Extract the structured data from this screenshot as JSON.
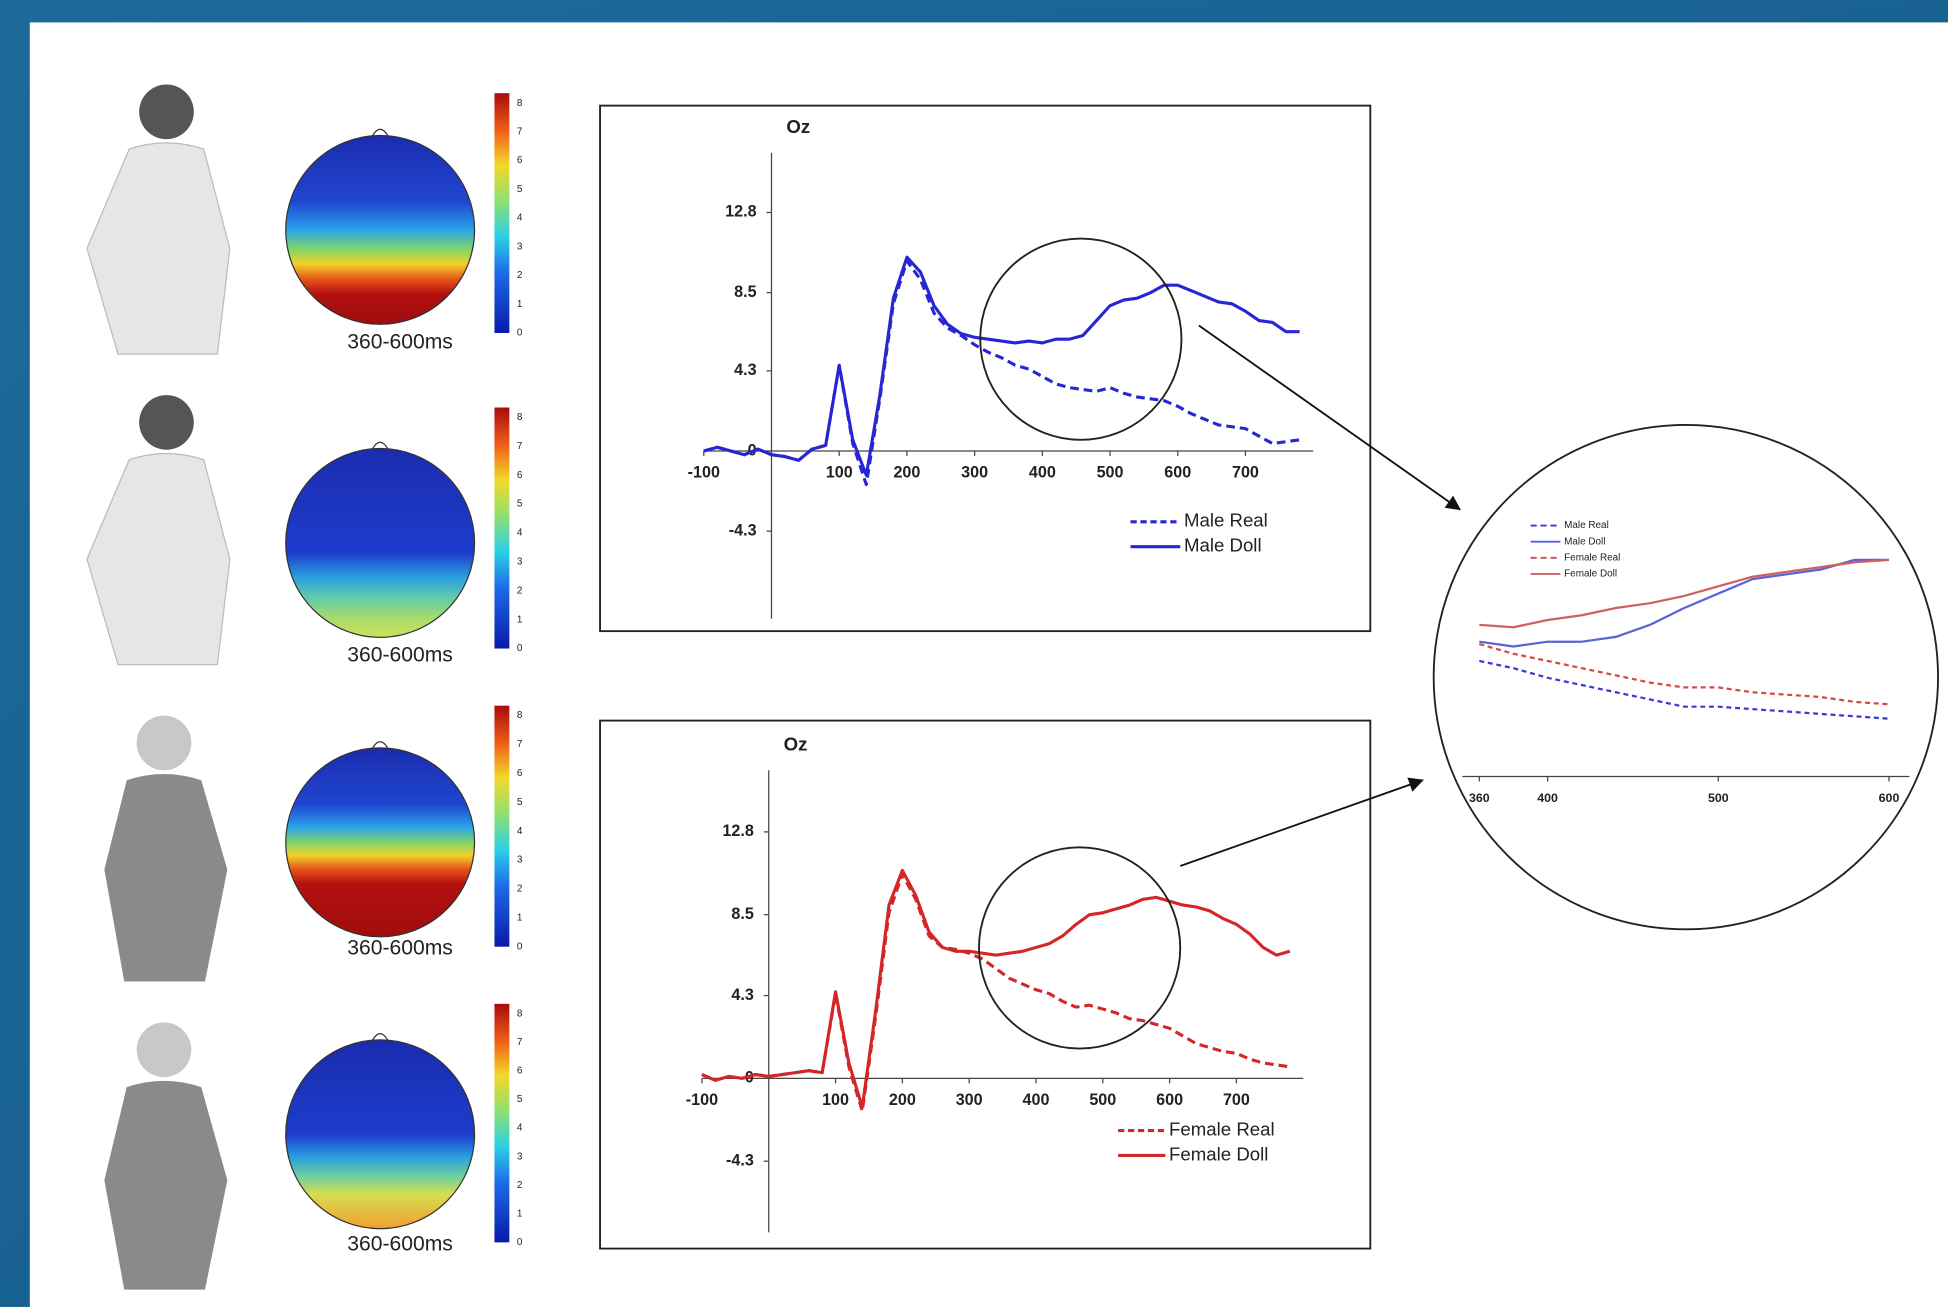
{
  "topomaps": [
    {
      "label": "360-600ms",
      "scale_ticks": [
        0,
        1,
        2,
        3,
        4,
        5,
        6,
        7,
        8
      ]
    },
    {
      "label": "360-600ms",
      "scale_ticks": [
        0,
        1,
        2,
        3,
        4,
        5,
        6,
        7,
        8
      ]
    },
    {
      "label": "360-600ms",
      "scale_ticks": [
        0,
        1,
        2,
        3,
        4,
        5,
        6,
        7,
        8
      ]
    },
    {
      "label": "360-600ms",
      "scale_ticks": [
        0,
        1,
        2,
        3,
        4,
        5,
        6,
        7,
        8
      ]
    }
  ],
  "chart_data": [
    {
      "type": "line",
      "title": "Oz",
      "x": [
        -100,
        -80,
        -60,
        -40,
        -20,
        0,
        20,
        40,
        60,
        80,
        100,
        120,
        140,
        160,
        180,
        200,
        220,
        240,
        260,
        280,
        300,
        320,
        340,
        360,
        380,
        400,
        420,
        440,
        460,
        480,
        500,
        520,
        540,
        560,
        580,
        600,
        620,
        640,
        660,
        680,
        700,
        720,
        740,
        760,
        780
      ],
      "xlim": [
        -100,
        800
      ],
      "xticks": [
        -100,
        100,
        200,
        300,
        400,
        500,
        600,
        700
      ],
      "ylim": [
        -9,
        16
      ],
      "yticks": [
        -4.3,
        0,
        4.3,
        8.5,
        12.8
      ],
      "series": [
        {
          "name": "Male Real",
          "color": "#2626d4",
          "dash": true,
          "values": [
            0,
            0.2,
            0,
            -0.2,
            0.1,
            -0.2,
            -0.3,
            -0.5,
            0.1,
            0.3,
            4.6,
            0.4,
            -1.8,
            2.8,
            7.9,
            10.2,
            9.2,
            7.4,
            6.6,
            6.2,
            5.7,
            5.3,
            5.0,
            4.6,
            4.4,
            4.0,
            3.6,
            3.4,
            3.3,
            3.2,
            3.4,
            3.1,
            2.9,
            2.8,
            2.7,
            2.4,
            2.0,
            1.7,
            1.4,
            1.3,
            1.2,
            0.8,
            0.4,
            0.5,
            0.6
          ]
        },
        {
          "name": "Male Doll",
          "color": "#2626d4",
          "dash": false,
          "values": [
            0,
            0.2,
            0,
            -0.2,
            0.1,
            -0.2,
            -0.3,
            -0.5,
            0.1,
            0.3,
            4.6,
            0.6,
            -1.3,
            3.0,
            8.2,
            10.4,
            9.6,
            7.8,
            6.8,
            6.3,
            6.1,
            6.0,
            5.9,
            5.8,
            5.9,
            5.8,
            6.0,
            6.0,
            6.2,
            7.0,
            7.8,
            8.1,
            8.2,
            8.5,
            8.9,
            8.9,
            8.6,
            8.3,
            8.0,
            7.9,
            7.5,
            7.0,
            6.9,
            6.4,
            6.4
          ]
        }
      ]
    },
    {
      "type": "line",
      "title": "Oz",
      "x": [
        -100,
        -80,
        -60,
        -40,
        -20,
        0,
        20,
        40,
        60,
        80,
        100,
        120,
        140,
        160,
        180,
        200,
        220,
        240,
        260,
        280,
        300,
        320,
        340,
        360,
        380,
        400,
        420,
        440,
        460,
        480,
        500,
        520,
        540,
        560,
        580,
        600,
        620,
        640,
        660,
        680,
        700,
        720,
        740,
        760,
        780
      ],
      "xlim": [
        -100,
        800
      ],
      "xticks": [
        -100,
        100,
        200,
        300,
        400,
        500,
        600,
        700
      ],
      "ylim": [
        -8,
        16
      ],
      "yticks": [
        -4.3,
        0,
        4.3,
        8.5,
        12.8
      ],
      "series": [
        {
          "name": "Female Real",
          "color": "#d42626",
          "dash": true,
          "values": [
            0.2,
            -0.1,
            0.1,
            0,
            0.2,
            0.1,
            0.2,
            0.3,
            0.4,
            0.3,
            4.4,
            0.6,
            -1.7,
            3.2,
            8.6,
            10.6,
            9.3,
            7.4,
            6.8,
            6.7,
            6.5,
            6.2,
            5.7,
            5.2,
            4.9,
            4.6,
            4.4,
            4.0,
            3.7,
            3.8,
            3.6,
            3.4,
            3.1,
            3.0,
            2.8,
            2.6,
            2.2,
            1.8,
            1.6,
            1.4,
            1.3,
            1.0,
            0.8,
            0.7,
            0.6
          ]
        },
        {
          "name": "Female Doll",
          "color": "#d42626",
          "dash": false,
          "values": [
            0.2,
            -0.1,
            0.1,
            0,
            0.2,
            0.1,
            0.2,
            0.3,
            0.4,
            0.3,
            4.5,
            0.8,
            -1.5,
            3.5,
            9.0,
            10.8,
            9.5,
            7.6,
            6.8,
            6.6,
            6.6,
            6.5,
            6.4,
            6.5,
            6.6,
            6.8,
            7.0,
            7.4,
            8.0,
            8.5,
            8.6,
            8.8,
            9.0,
            9.3,
            9.4,
            9.2,
            9.0,
            8.9,
            8.7,
            8.3,
            8.0,
            7.5,
            6.8,
            6.4,
            6.6
          ]
        }
      ]
    },
    {
      "type": "line",
      "y_axis": false,
      "x": [
        360,
        380,
        400,
        420,
        440,
        460,
        480,
        500,
        520,
        540,
        560,
        580,
        600
      ],
      "xlim": [
        350,
        612
      ],
      "xticks": [
        360,
        400,
        500,
        600
      ],
      "ylim": [
        0,
        16
      ],
      "series": [
        {
          "name": "Male Real",
          "color": "#3a3ad8",
          "dash": true,
          "values": [
            4.8,
            4.5,
            4.1,
            3.8,
            3.5,
            3.2,
            2.9,
            2.9,
            2.8,
            2.7,
            2.6,
            2.5,
            2.4
          ]
        },
        {
          "name": "Male Doll",
          "color": "#5a62d8",
          "dash": false,
          "values": [
            5.6,
            5.4,
            5.6,
            5.6,
            5.8,
            6.3,
            7.0,
            7.6,
            8.2,
            8.4,
            8.6,
            9.0,
            9.0
          ]
        },
        {
          "name": "Female Real",
          "color": "#d44a4a",
          "dash": true,
          "values": [
            5.5,
            5.1,
            4.8,
            4.5,
            4.2,
            3.9,
            3.7,
            3.7,
            3.5,
            3.4,
            3.3,
            3.1,
            3.0
          ]
        },
        {
          "name": "Female Doll",
          "color": "#cf6060",
          "dash": false,
          "values": [
            6.3,
            6.2,
            6.5,
            6.7,
            7.0,
            7.2,
            7.5,
            7.9,
            8.3,
            8.5,
            8.7,
            8.9,
            9.0
          ]
        }
      ]
    }
  ]
}
